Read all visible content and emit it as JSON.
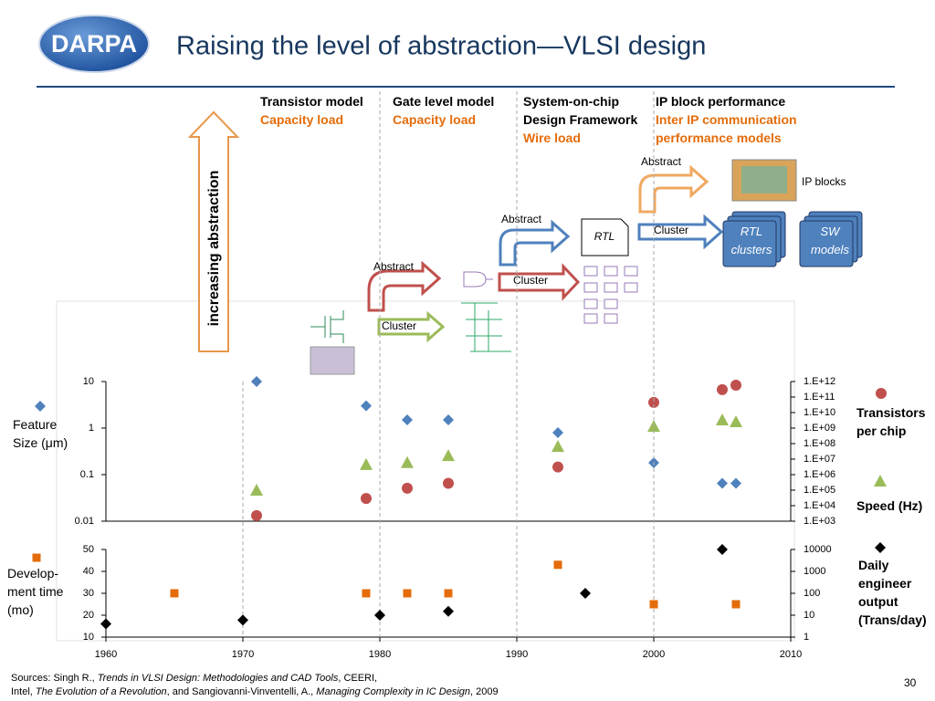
{
  "logo": "DARPA",
  "title": "Raising the level of abstraction—VLSI design",
  "columns": [
    {
      "model": [
        "Transistor model"
      ],
      "load": [
        "Capacity load"
      ]
    },
    {
      "model": [
        "Gate level model"
      ],
      "load": [
        "Capacity load"
      ]
    },
    {
      "model": [
        "System-on-chip",
        "Design Framework"
      ],
      "load": [
        "Wire load"
      ]
    },
    {
      "model": [
        "IP block performance"
      ],
      "load": [
        "Inter IP communication",
        "performance models"
      ]
    }
  ],
  "diagram": {
    "axis_label": "increasing abstraction",
    "abstract": [
      "Abstract",
      "Abstract",
      "Abstract"
    ],
    "cluster": [
      "Cluster",
      "Cluster",
      "Cluster"
    ],
    "rtl": "RTL",
    "ip_blocks": "IP blocks",
    "rtl_clusters": "RTL clusters",
    "sw_models": "SW models"
  },
  "chart_data": [
    {
      "type": "scatter",
      "xlim": [
        1960,
        2010
      ],
      "ylim": [
        0.01,
        10
      ],
      "yscale": "log",
      "yticks": [
        10,
        1,
        0.1,
        0.01
      ],
      "y2lim": [
        1000,
        1000000000000
      ],
      "y2scale": "log",
      "y2ticks": [
        {
          "value": 1000000000000,
          "label": "1.E+12"
        },
        {
          "value": 100000000000,
          "label": "1.E+11"
        },
        {
          "value": 10000000000,
          "label": "1.E+10"
        },
        {
          "value": 1000000000,
          "label": "1.E+09"
        },
        {
          "value": 100000000,
          "label": "1.E+08"
        },
        {
          "value": 10000000,
          "label": "1.E+07"
        },
        {
          "value": 1000000,
          "label": "1.E+06"
        },
        {
          "value": 100000,
          "label": "1.E+05"
        },
        {
          "value": 10000,
          "label": "1.E+04"
        },
        {
          "value": 1000,
          "label": "1.E+03"
        }
      ],
      "series": [
        {
          "name": "Feature Size (μm)",
          "color": "#4f81bd",
          "marker": "diamond",
          "x": [
            1971,
            1979,
            1982,
            1985,
            1993,
            2000,
            2005,
            2006
          ],
          "values": [
            10,
            3,
            1.5,
            1.5,
            0.8,
            0.18,
            0.065,
            0.065
          ]
        },
        {
          "name": "Transistors per chip",
          "color": "#c0504d",
          "marker": "circle",
          "axis": "y2",
          "x": [
            1971,
            1979,
            1982,
            1985,
            1993,
            2000,
            2005,
            2006
          ],
          "values": [
            2300,
            29000,
            134000,
            275000,
            3100000,
            45000000000,
            300000000000,
            580000000000
          ]
        },
        {
          "name": "Speed (Hz)",
          "color": "#9bbb59",
          "marker": "triangle",
          "axis": "y2",
          "x": [
            1971,
            1979,
            1982,
            1985,
            1993,
            2000,
            2005,
            2006
          ],
          "values": [
            100000,
            4500000,
            6000000,
            17000000,
            66000000,
            1300000000,
            3400000000,
            2600000000
          ]
        }
      ]
    },
    {
      "type": "scatter",
      "xlim": [
        1960,
        2010
      ],
      "xticks": [
        1960,
        1970,
        1980,
        1990,
        2000,
        2010
      ],
      "ylim": [
        10,
        50
      ],
      "yticks": [
        50,
        40,
        30,
        20,
        10
      ],
      "y2lim": [
        1,
        10000
      ],
      "y2scale": "log",
      "y2ticks": [
        10000,
        1000,
        100,
        10,
        1
      ],
      "series": [
        {
          "name": "Develop-ment time (mo)",
          "color": "#e46c0a",
          "marker": "square",
          "x": [
            1965,
            1979,
            1982,
            1985,
            1993,
            2000,
            2006
          ],
          "values": [
            30,
            30,
            30,
            30,
            43,
            25,
            25
          ]
        },
        {
          "name": "Daily engineer output (Trans/day)",
          "color": "#000000",
          "marker": "diamond",
          "axis": "y2",
          "x": [
            1960,
            1970,
            1980,
            1985,
            1995,
            2005
          ],
          "values": [
            4,
            6,
            10,
            15,
            100,
            10000
          ]
        }
      ]
    }
  ],
  "sources": [
    [
      {
        "text": "Sources: Singh R., ",
        "italic": false
      },
      {
        "text": "Trends in VLSI Design: Methodologies and CAD Tools",
        "italic": true
      },
      {
        "text": ", CEERI,",
        "italic": false
      }
    ],
    [
      {
        "text": "Intel, ",
        "italic": false
      },
      {
        "text": "The Evolution of a Revolution",
        "italic": true
      },
      {
        "text": ", and Sangiovanni-Vinventelli, A., ",
        "italic": false
      },
      {
        "text": "Managing Complexity in IC Design",
        "italic": true
      },
      {
        "text": ", 2009",
        "italic": false
      }
    ]
  ],
  "page_number": "30"
}
